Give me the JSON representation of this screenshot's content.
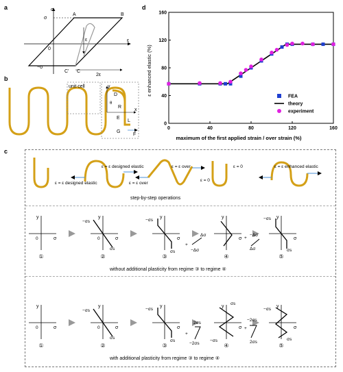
{
  "panels": {
    "a": "a",
    "b": "b",
    "c": "c",
    "d": "d"
  },
  "panel_a": {
    "axis_sigma": "σ",
    "axis_eps": "ε",
    "origin": "0",
    "sigma_y": "σ",
    "neg_sigma_y": "−σ",
    "pt_A": "A",
    "pt_B": "B",
    "pt_C": "C",
    "pt_C2": "C'",
    "eps_c": "ε",
    "two_eps_c": "2ε"
  },
  "panel_b": {
    "unit_cell": "unit cell",
    "labels": [
      "y",
      "D",
      "R",
      "E",
      "L",
      "G",
      "F",
      "x",
      "θ"
    ]
  },
  "panel_c": {
    "top_formulas": [
      "ε = ε designed elastic",
      "ε = ε designed elastic",
      "ε = ε over",
      "ε = ε over",
      "ε = 0",
      "ε = 0",
      "ε = ε enhanced elastic"
    ],
    "step_caption": "step-by-step operations",
    "row1_caption": "without  additional plasticity from regime ③ to regime ④",
    "row2_caption": "with  additional plasticity from regime ③ to regime ④",
    "step_numbers": [
      "①",
      "②",
      "③",
      "④",
      "⑤"
    ],
    "axis_y": "y",
    "axis_sigma": "σ",
    "zero": "0",
    "sigma_s": "σs",
    "neg_sigma_s": "−σs",
    "delta_sigma": "Δσ",
    "neg_delta_sigma": "−Δσ",
    "two_sigma_s": "2σs",
    "neg_two_sigma_s": "−2σs",
    "plus": "+"
  },
  "chart_data": {
    "type": "scatter",
    "xlabel": "maximum of the first applied strain / over strain (%)",
    "ylabel": "ε enhanced elastic (%)",
    "xlim": [
      0,
      160
    ],
    "ylim": [
      0,
      160
    ],
    "xticks": [
      0,
      40,
      80,
      120,
      160
    ],
    "yticks": [
      0,
      40,
      80,
      120,
      160
    ],
    "legend_position": "bottom-right",
    "series": [
      {
        "name": "FEA",
        "kind": "square",
        "color": "#1f3fd0",
        "points": [
          [
            0,
            57
          ],
          [
            30,
            57
          ],
          [
            50,
            57
          ],
          [
            55,
            57
          ],
          [
            60,
            57
          ],
          [
            70,
            68
          ],
          [
            80,
            80
          ],
          [
            90,
            90
          ],
          [
            100,
            100
          ],
          [
            110,
            110
          ],
          [
            115,
            114
          ],
          [
            120,
            114
          ],
          [
            140,
            114
          ],
          [
            150,
            114
          ],
          [
            160,
            114
          ]
        ]
      },
      {
        "name": "theory",
        "kind": "line",
        "color": "#000000",
        "points": [
          [
            0,
            57
          ],
          [
            57,
            57
          ],
          [
            114,
            114
          ],
          [
            160,
            114
          ]
        ]
      },
      {
        "name": "experiment",
        "kind": "circle",
        "color": "#e020e0",
        "points": [
          [
            0,
            57
          ],
          [
            30,
            58
          ],
          [
            50,
            58
          ],
          [
            60,
            60
          ],
          [
            70,
            72
          ],
          [
            75,
            77
          ],
          [
            80,
            82
          ],
          [
            90,
            92
          ],
          [
            100,
            102
          ],
          [
            105,
            106
          ],
          [
            115,
            113
          ],
          [
            120,
            115
          ],
          [
            130,
            115
          ],
          [
            140,
            114
          ],
          [
            160,
            114
          ]
        ]
      }
    ]
  }
}
